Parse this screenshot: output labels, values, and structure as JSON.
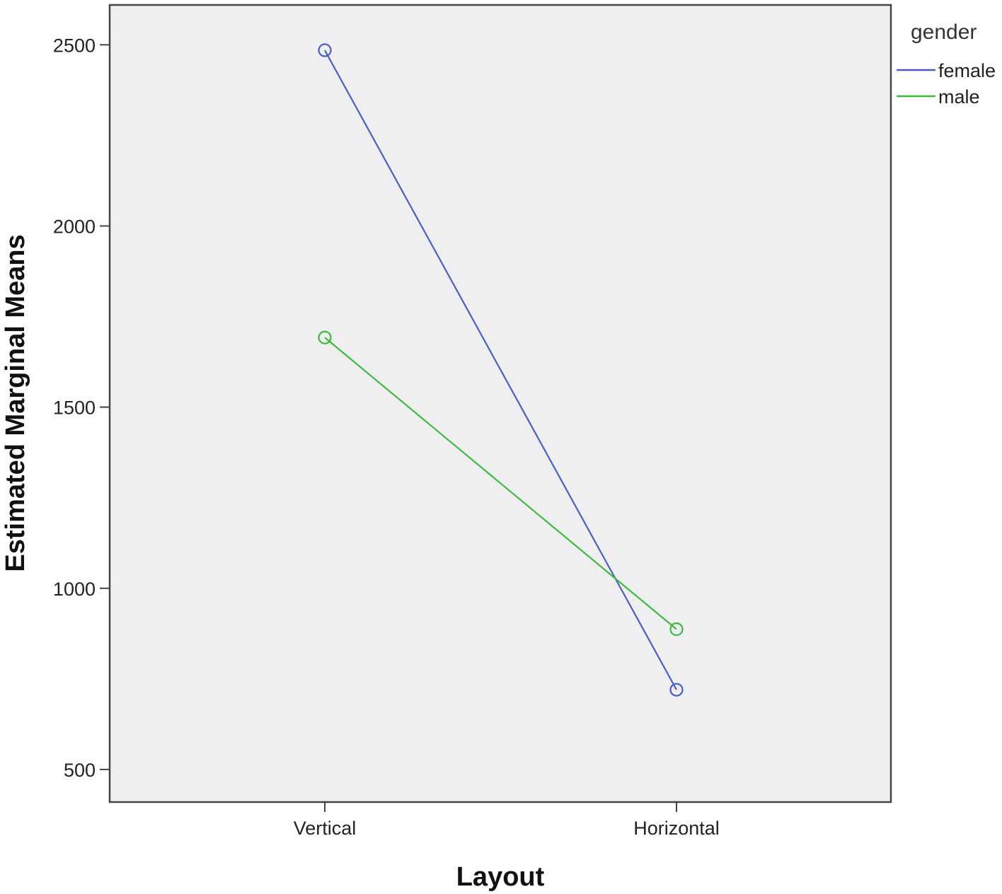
{
  "chart_data": {
    "type": "line",
    "title": "",
    "xlabel": "Layout",
    "ylabel": "Estimated Marginal Means",
    "categories": [
      "Vertical",
      "Horizontal"
    ],
    "ylim": [
      410,
      2610
    ],
    "yticks": [
      500,
      1000,
      1500,
      2000,
      2500
    ],
    "grid": false,
    "legend": {
      "title": "gender",
      "placement": "right"
    },
    "series": [
      {
        "name": "female",
        "values": [
          2485,
          720
        ],
        "color": "#4a5fc1"
      },
      {
        "name": "male",
        "values": [
          1692,
          887
        ],
        "color": "#3dba3d"
      }
    ],
    "plot_background": "#efeff2"
  }
}
